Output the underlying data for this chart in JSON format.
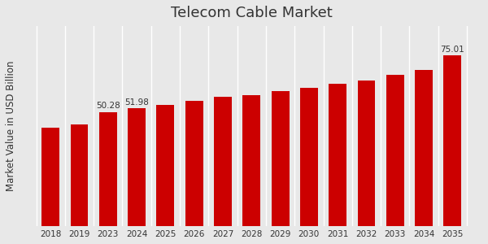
{
  "categories": [
    "2018",
    "2019",
    "2023",
    "2024",
    "2025",
    "2026",
    "2027",
    "2028",
    "2029",
    "2030",
    "2031",
    "2032",
    "2033",
    "2034",
    "2035"
  ],
  "values": [
    43.5,
    44.8,
    50.28,
    51.98,
    53.5,
    55.2,
    56.8,
    57.8,
    59.5,
    61.0,
    62.5,
    64.2,
    66.5,
    68.8,
    75.01
  ],
  "labeled_bars": {
    "2023": "50.28",
    "2024": "51.98",
    "2035": "75.01"
  },
  "bar_color": "#cc0000",
  "title": "Telecom Cable Market",
  "ylabel": "Market Value in USD Billion",
  "background_color": "#e8e8e8",
  "title_fontsize": 13,
  "label_fontsize": 7.5,
  "ylabel_fontsize": 8.5,
  "tick_fontsize": 7.5,
  "ylim": [
    0,
    88
  ],
  "bottom_bar_color": "#cc0000",
  "bottom_bar_height": 0.025
}
